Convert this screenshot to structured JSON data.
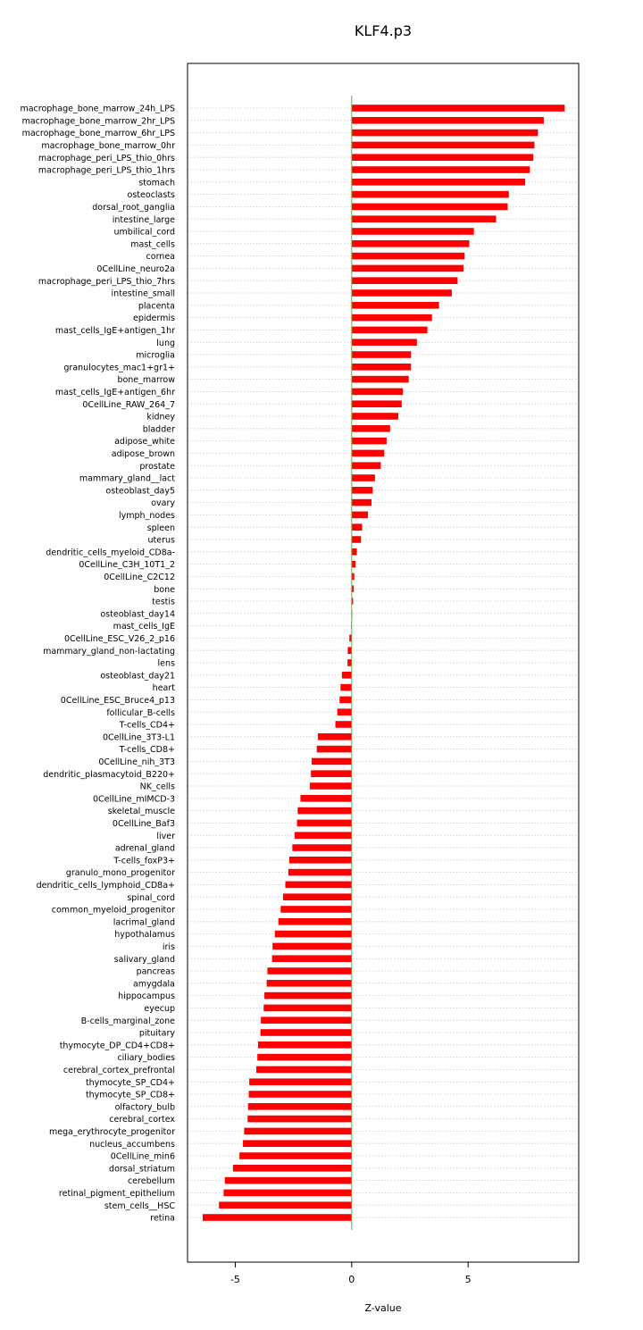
{
  "chart_data": {
    "type": "bar",
    "orientation": "horizontal",
    "title": "KLF4.p3",
    "xlabel": "Z-value",
    "ylabel": "",
    "xlim": [
      -7.05,
      9.75
    ],
    "xticks": [
      -5,
      0,
      5
    ],
    "xtick_labels": [
      "-5",
      "0",
      "5"
    ],
    "grid": "dotted horizontal",
    "colors": {
      "bar": "#ff0000",
      "zero_line": "#33cc33",
      "grid": "#c8c8c8",
      "frame": "#000000"
    },
    "categories": [
      "macrophage_bone_marrow_24h_LPS",
      "macrophage_bone_marrow_2hr_LPS",
      "macrophage_bone_marrow_6hr_LPS",
      "macrophage_bone_marrow_0hr",
      "macrophage_peri_LPS_thio_0hrs",
      "macrophage_peri_LPS_thio_1hrs",
      "stomach",
      "osteoclasts",
      "dorsal_root_ganglia",
      "intestine_large",
      "umbilical_cord",
      "mast_cells",
      "cornea",
      "0CellLine_neuro2a",
      "macrophage_peri_LPS_thio_7hrs",
      "intestine_small",
      "placenta",
      "epidermis",
      "mast_cells_IgE+antigen_1hr",
      "lung",
      "microglia",
      "granulocytes_mac1+gr1+",
      "bone_marrow",
      "mast_cells_IgE+antigen_6hr",
      "0CellLine_RAW_264_7",
      "kidney",
      "bladder",
      "adipose_white",
      "adipose_brown",
      "prostate",
      "mammary_gland__lact",
      "osteoblast_day5",
      "ovary",
      "lymph_nodes",
      "spleen",
      "uterus",
      "dendritic_cells_myeloid_CD8a-",
      "0CellLine_C3H_10T1_2",
      "0CellLine_C2C12",
      "bone",
      "testis",
      "osteoblast_day14",
      "mast_cells_IgE",
      "0CellLine_ESC_V26_2_p16",
      "mammary_gland_non-lactating",
      "lens",
      "osteoblast_day21",
      "heart",
      "0CellLine_ESC_Bruce4_p13",
      "follicular_B-cells",
      "T-cells_CD4+",
      "0CellLine_3T3-L1",
      "T-cells_CD8+",
      "0CellLine_nih_3T3",
      "dendritic_plasmacytoid_B220+",
      "NK_cells",
      "0CellLine_mIMCD-3",
      "skeletal_muscle",
      "0CellLine_Baf3",
      "liver",
      "adrenal_gland",
      "T-cells_foxP3+",
      "granulo_mono_progenitor",
      "dendritic_cells_lymphoid_CD8a+",
      "spinal_cord",
      "common_myeloid_progenitor",
      "lacrimal_gland",
      "hypothalamus",
      "iris",
      "salivary_gland",
      "pancreas",
      "amygdala",
      "hippocampus",
      "eyecup",
      "B-cells_marginal_zone",
      "pituitary",
      "thymocyte_DP_CD4+CD8+",
      "ciliary_bodies",
      "cerebral_cortex_prefrontal",
      "thymocyte_SP_CD4+",
      "thymocyte_SP_CD8+",
      "olfactory_bulb",
      "cerebral_cortex",
      "mega_erythrocyte_progenitor",
      "nucleus_accumbens",
      "0CellLine_min6",
      "dorsal_striatum",
      "cerebellum",
      "retinal_pigment_epithelium",
      "stem_cells__HSC",
      "retina"
    ],
    "values": [
      9.15,
      8.25,
      8.0,
      7.85,
      7.8,
      7.65,
      7.45,
      6.75,
      6.7,
      6.2,
      5.25,
      5.05,
      4.85,
      4.8,
      4.55,
      4.3,
      3.75,
      3.45,
      3.25,
      2.8,
      2.55,
      2.55,
      2.45,
      2.2,
      2.15,
      2.0,
      1.65,
      1.5,
      1.4,
      1.25,
      1.0,
      0.9,
      0.85,
      0.7,
      0.45,
      0.4,
      0.22,
      0.17,
      0.11,
      0.09,
      0.06,
      0.02,
      -0.02,
      -0.1,
      -0.17,
      -0.18,
      -0.42,
      -0.48,
      -0.52,
      -0.62,
      -0.7,
      -1.45,
      -1.5,
      -1.72,
      -1.75,
      -1.8,
      -2.2,
      -2.32,
      -2.35,
      -2.45,
      -2.55,
      -2.68,
      -2.72,
      -2.85,
      -2.95,
      -3.05,
      -3.15,
      -3.3,
      -3.4,
      -3.42,
      -3.62,
      -3.65,
      -3.75,
      -3.78,
      -3.9,
      -3.92,
      -4.02,
      -4.05,
      -4.1,
      -4.4,
      -4.42,
      -4.45,
      -4.47,
      -4.62,
      -4.67,
      -4.82,
      -5.1,
      -5.45,
      -5.5,
      -5.7,
      -6.4
    ]
  }
}
